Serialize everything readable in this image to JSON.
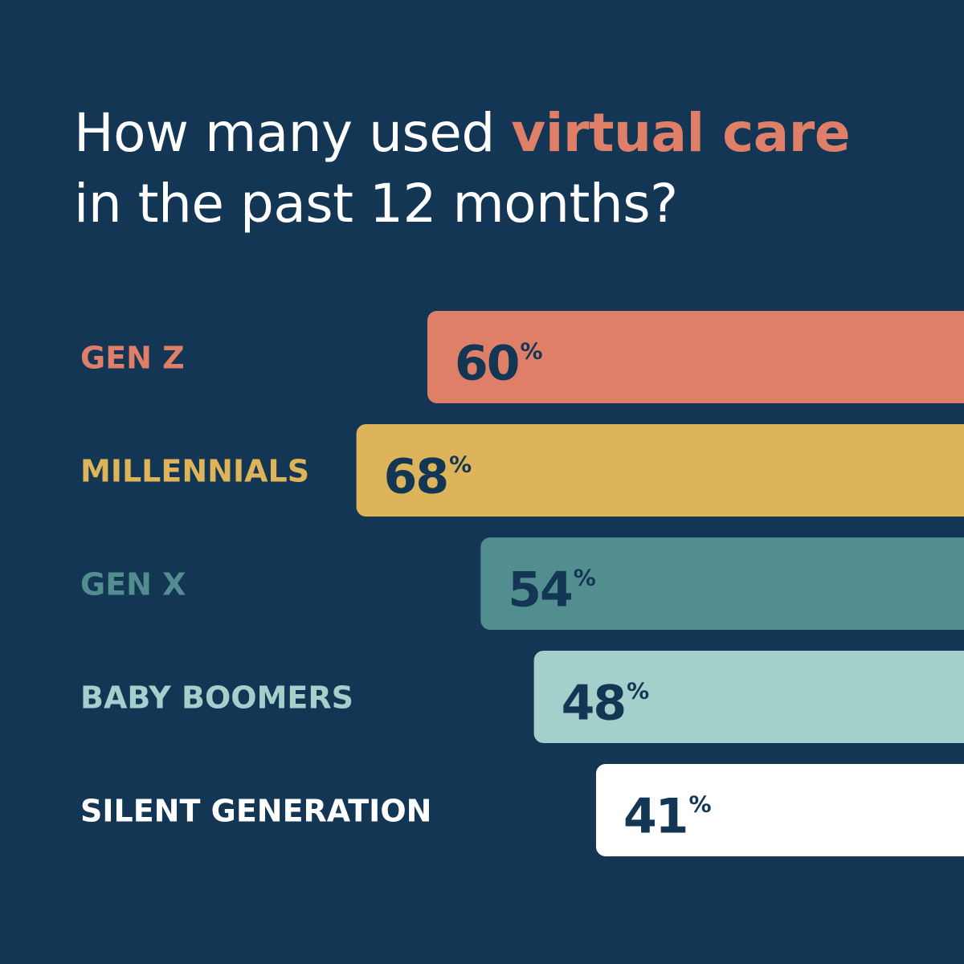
{
  "title": {
    "part1": "How many used ",
    "accent": "virtual care",
    "part2": " in the past 12 months?",
    "accent_color": "#E07F68"
  },
  "colors": {
    "background": "#133654",
    "value_text": "#133654"
  },
  "chart_data": {
    "type": "bar",
    "orientation": "horizontal",
    "categories": [
      "GEN Z",
      "MILLENNIALS",
      "GEN X",
      "BABY BOOMERS",
      "SILENT GENERATION"
    ],
    "values": [
      60,
      68,
      54,
      48,
      41
    ],
    "value_suffix": "%",
    "colors": [
      "#E07F68",
      "#DDB45A",
      "#528E90",
      "#A3D0CB",
      "#FFFFFF"
    ],
    "title": "How many used virtual care in the past 12 months?",
    "xlabel": "",
    "ylabel": "",
    "grid": false,
    "legend": "none",
    "bar_alignment": "right-anchored"
  }
}
